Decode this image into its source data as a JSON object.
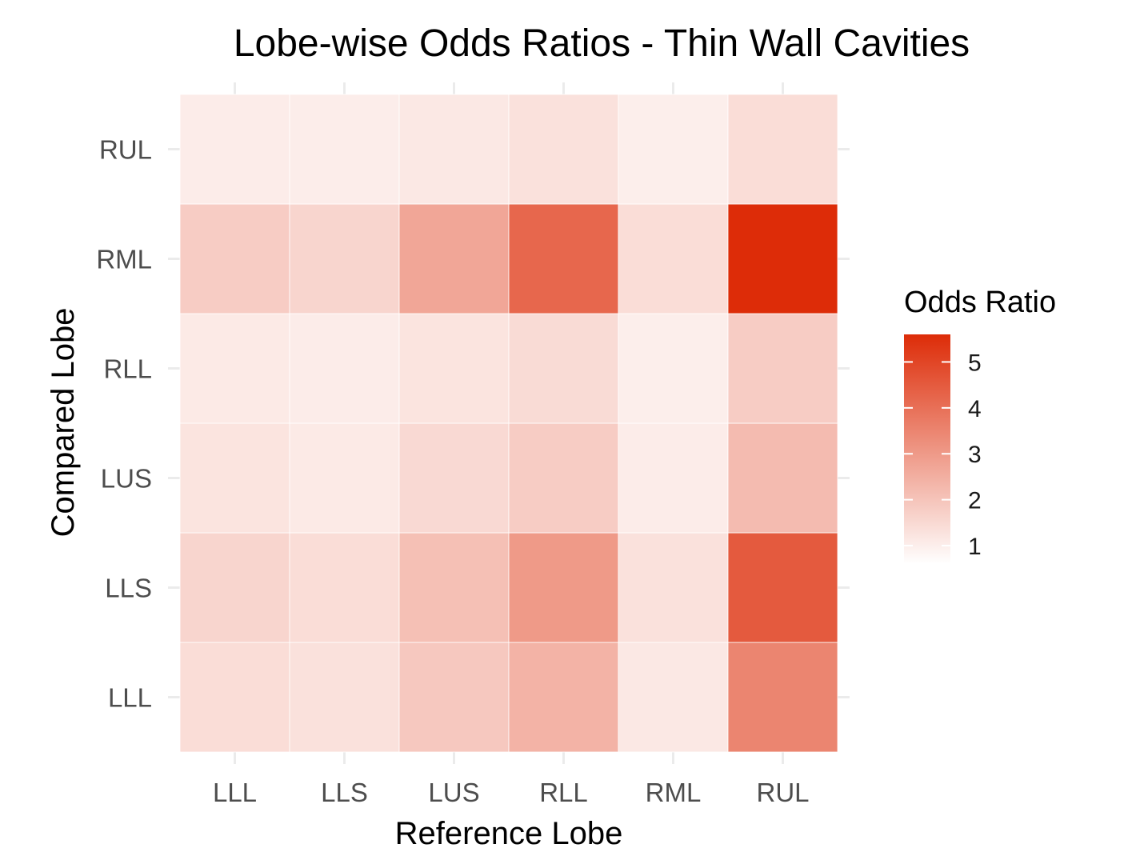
{
  "chart_data": {
    "type": "heatmap",
    "title": "Lobe-wise Odds Ratios - Thin Wall Cavities",
    "xlabel": "Reference Lobe",
    "ylabel": "Compared Lobe",
    "x_categories": [
      "LLL",
      "LLS",
      "LUS",
      "RLL",
      "RML",
      "RUL"
    ],
    "y_categories": [
      "LLL",
      "LLS",
      "LUS",
      "RLL",
      "RML",
      "RUL"
    ],
    "values": [
      [
        1.4,
        1.3,
        1.9,
        2.4,
        1.15,
        3.5
      ],
      [
        1.6,
        1.4,
        2.1,
        3.0,
        1.3,
        4.5
      ],
      [
        1.25,
        1.1,
        1.5,
        1.8,
        1.05,
        2.2
      ],
      [
        1.1,
        1.05,
        1.25,
        1.45,
        1.0,
        1.8
      ],
      [
        1.8,
        1.6,
        2.7,
        4.2,
        1.4,
        5.6
      ],
      [
        1.05,
        1.02,
        1.15,
        1.3,
        1.0,
        1.4
      ]
    ],
    "legend": {
      "title": "Odds Ratio",
      "ticks": [
        1,
        2,
        3,
        4,
        5
      ],
      "range": [
        0.6,
        5.6
      ],
      "low_color": "#ffffff",
      "high_color": "#dd2c08",
      "position": "right"
    },
    "grid": true
  }
}
